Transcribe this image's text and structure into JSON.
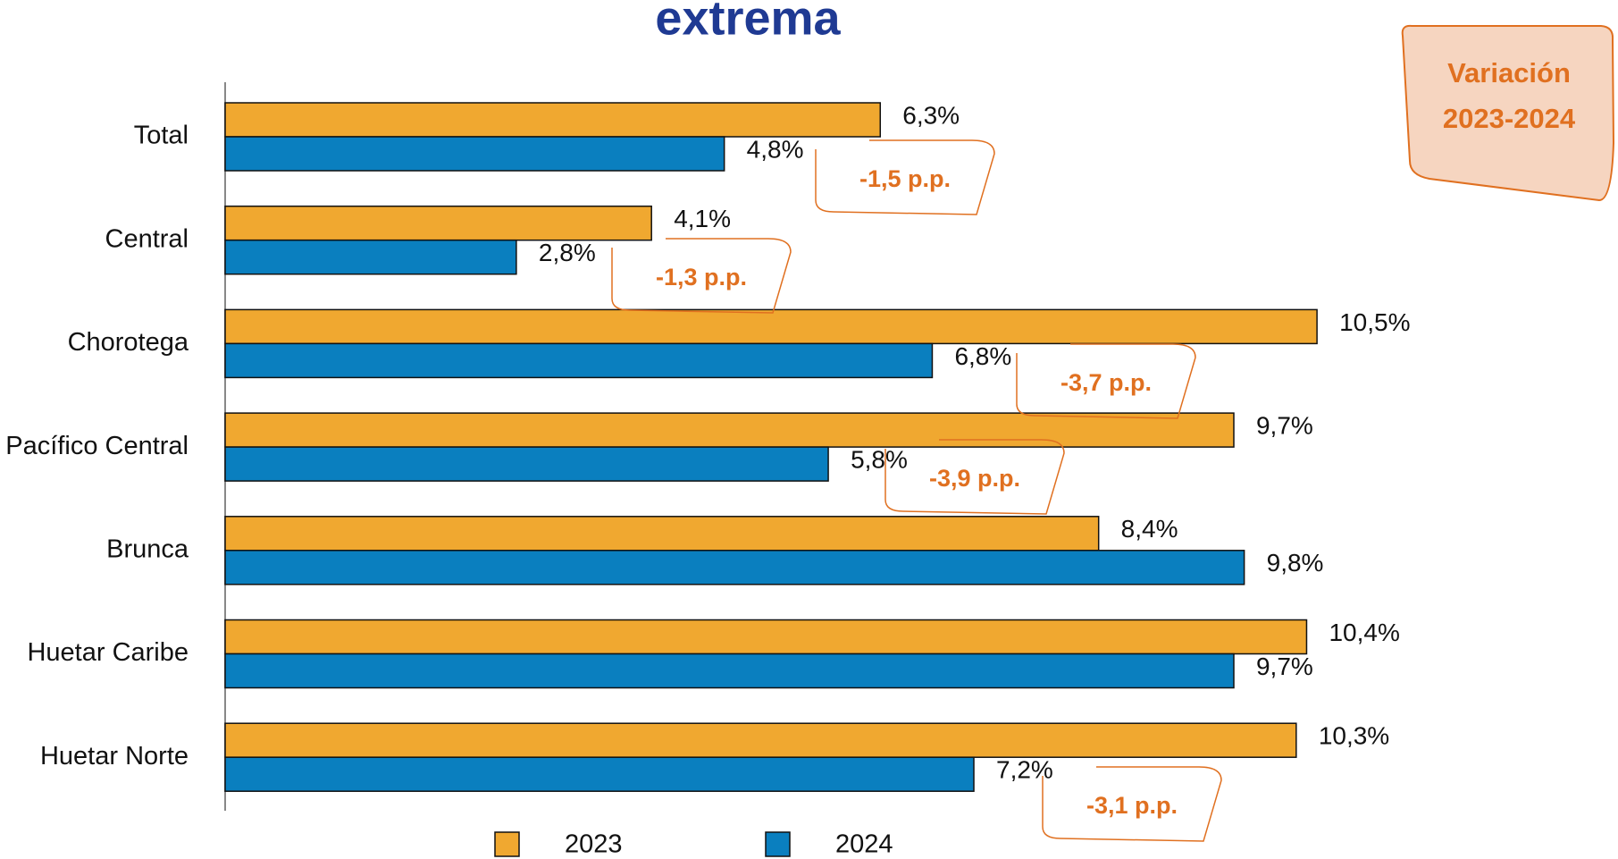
{
  "chart_data": {
    "type": "bar",
    "orientation": "horizontal",
    "title": "extrema",
    "categories": [
      "Total",
      "Central",
      "Chorotega",
      "Pacífico Central",
      "Brunca",
      "Huetar Caribe",
      "Huetar Norte"
    ],
    "series": [
      {
        "name": "2023",
        "color": "#f0a830",
        "values": [
          6.3,
          4.1,
          10.5,
          9.7,
          8.4,
          10.4,
          10.3
        ],
        "value_labels": [
          "6,3%",
          "4,1%",
          "10,5%",
          "9,7%",
          "8,4%",
          "10,4%",
          "10,3%"
        ]
      },
      {
        "name": "2024",
        "color": "#0a7fbf",
        "values": [
          4.8,
          2.8,
          6.8,
          5.8,
          9.8,
          9.7,
          7.2
        ],
        "value_labels": [
          "4,8%",
          "2,8%",
          "6,8%",
          "5,8%",
          "9,8%",
          "9,7%",
          "7,2%"
        ]
      }
    ],
    "xlim": [
      0,
      13.3
    ],
    "annotations": [
      "-1,5 p.p.",
      "-1,3 p.p.",
      "-3,7 p.p.",
      "-3,9 p.p.",
      "-3,1 p.p."
    ],
    "badge": [
      "Variación",
      "2023-2024"
    ]
  }
}
